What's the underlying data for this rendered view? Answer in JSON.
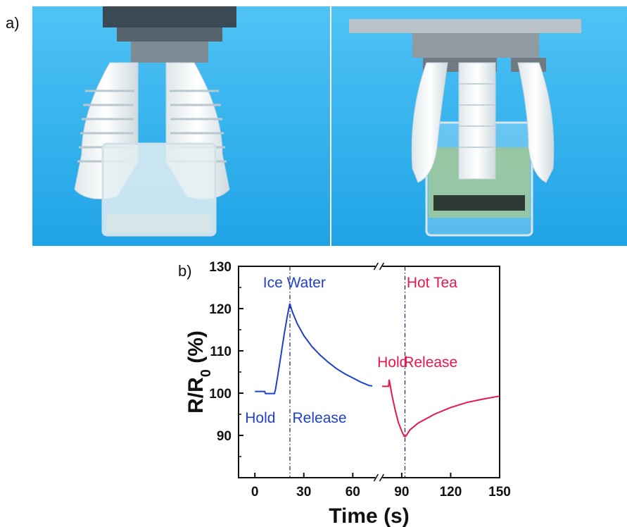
{
  "panel_labels": {
    "a": "a)",
    "b": "b)"
  },
  "photos": [
    {
      "description_hidden": "",
      "water_color": "#e4eef2"
    },
    {
      "description_hidden": "",
      "water_color": "#9cc79a"
    }
  ],
  "colors": {
    "background": "#33b5f0",
    "ice": "#1f3fd0",
    "tea": "#e8174a",
    "axis": "#111111"
  },
  "chart_data": {
    "type": "line",
    "xlabel": "Time (s)",
    "ylabel": "R/R0 (%)",
    "ylabel_main": "R/R",
    "ylabel_sub": "0",
    "ylabel_tail": " (%)",
    "ylim": [
      80,
      130
    ],
    "xlim": [
      -10,
      150
    ],
    "xticks": [
      0,
      30,
      60,
      90,
      120,
      150
    ],
    "yticks": [
      90,
      100,
      110,
      120,
      130
    ],
    "axis_break_x": 76,
    "series": [
      {
        "color_key": "ice",
        "points": [
          [
            0,
            100.4
          ],
          [
            6,
            100.4
          ],
          [
            6.5,
            99.9
          ],
          [
            12,
            99.9
          ],
          [
            12.6,
            100.8
          ],
          [
            14,
            104
          ],
          [
            16,
            109
          ],
          [
            18,
            114
          ],
          [
            20,
            118.5
          ],
          [
            21.4,
            121.2
          ],
          [
            23,
            119.2
          ],
          [
            26,
            116.4
          ],
          [
            30,
            113.6
          ],
          [
            35,
            111
          ],
          [
            40,
            109
          ],
          [
            45,
            107.3
          ],
          [
            50,
            105.8
          ],
          [
            55,
            104.6
          ],
          [
            60,
            103.6
          ],
          [
            65,
            102.6
          ],
          [
            70,
            101.8
          ],
          [
            72,
            101.7
          ]
        ]
      },
      {
        "color_key": "tea",
        "points": [
          [
            78,
            101.6
          ],
          [
            82,
            101.6
          ],
          [
            82.3,
            103.2
          ],
          [
            83,
            101.8
          ],
          [
            84,
            99.5
          ],
          [
            86,
            96
          ],
          [
            88,
            93
          ],
          [
            90,
            91
          ],
          [
            91.5,
            89.8
          ],
          [
            92.5,
            89.8
          ],
          [
            95,
            91.3
          ],
          [
            100,
            92.9
          ],
          [
            110,
            95
          ],
          [
            120,
            96.6
          ],
          [
            130,
            97.8
          ],
          [
            140,
            98.6
          ],
          [
            150,
            99.3
          ]
        ]
      }
    ],
    "vlines": [
      21.5,
      92
    ],
    "annotations": [
      {
        "text": "Ice Water",
        "x": 5,
        "y": 125,
        "color_key": "ice"
      },
      {
        "text": "Hold",
        "x": -6,
        "y": 93,
        "color_key": "ice"
      },
      {
        "text": "Release",
        "x": 23,
        "y": 93,
        "color_key": "ice"
      },
      {
        "text": "Hot Tea",
        "x": 93,
        "y": 125,
        "color_key": "tea"
      },
      {
        "text": "Hold",
        "x": 75,
        "y": 106.2,
        "color_key": "tea"
      },
      {
        "text": "Release",
        "x": 91,
        "y": 106.2,
        "color_key": "tea"
      }
    ]
  }
}
